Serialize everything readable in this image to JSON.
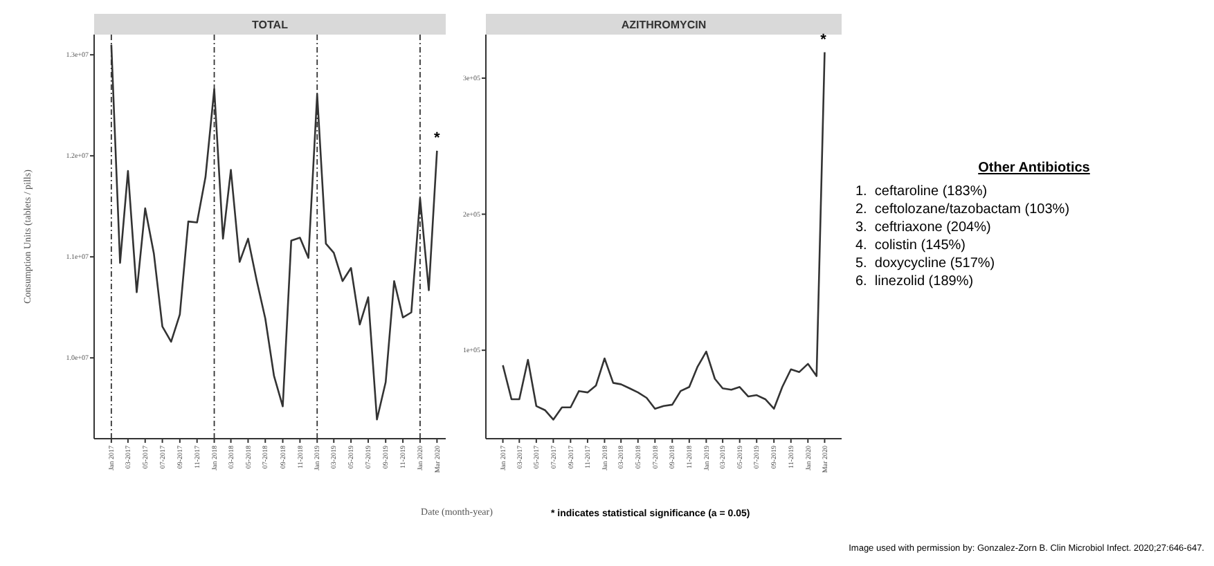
{
  "chart_data": [
    {
      "type": "line",
      "title": "TOTAL",
      "xlabel": "Date (month-year)",
      "ylabel": "Consumption Units (tablets / pills)",
      "x": [
        "2017-01",
        "2017-02",
        "2017-03",
        "2017-04",
        "2017-05",
        "2017-06",
        "2017-07",
        "2017-08",
        "2017-09",
        "2017-10",
        "2017-11",
        "2017-12",
        "2018-01",
        "2018-02",
        "2018-03",
        "2018-04",
        "2018-05",
        "2018-06",
        "2018-07",
        "2018-08",
        "2018-09",
        "2018-10",
        "2018-11",
        "2018-12",
        "2019-01",
        "2019-02",
        "2019-03",
        "2019-04",
        "2019-05",
        "2019-06",
        "2019-07",
        "2019-08",
        "2019-09",
        "2019-10",
        "2019-11",
        "2019-12",
        "2020-01",
        "2020-02",
        "2020-03"
      ],
      "series": [
        {
          "color": "#333333",
          "values": [
            13100000,
            10940000,
            11850000,
            10650000,
            11480000,
            11030000,
            10310000,
            10160000,
            10430000,
            11350000,
            11340000,
            11790000,
            12660000,
            11180000,
            11860000,
            10950000,
            11180000,
            10760000,
            10390000,
            9820000,
            9520000,
            11160000,
            11190000,
            10990000,
            12610000,
            11130000,
            11040000,
            10760000,
            10890000,
            10330000,
            10600000,
            9390000,
            9760000,
            10760000,
            10400000,
            10450000,
            11580000,
            10670000,
            12050000
          ]
        }
      ],
      "xlim": [
        "2016-11",
        "2020-04"
      ],
      "ylim": [
        9200000,
        13200000
      ],
      "yticks": [
        {
          "value": 10000000,
          "label": "1.0e+07"
        },
        {
          "value": 11000000,
          "label": "1.1e+07"
        },
        {
          "value": 12000000,
          "label": "1.2e+07"
        },
        {
          "value": 13000000,
          "label": "1.3e+07"
        }
      ],
      "xticks": [
        {
          "value": "2017-01",
          "label": "Jan 2017"
        },
        {
          "value": "2017-03",
          "label": "03-2017"
        },
        {
          "value": "2017-05",
          "label": "05-2017"
        },
        {
          "value": "2017-07",
          "label": "07-2017"
        },
        {
          "value": "2017-09",
          "label": "09-2017"
        },
        {
          "value": "2017-11",
          "label": "11-2017"
        },
        {
          "value": "2018-01",
          "label": "Jan 2018"
        },
        {
          "value": "2018-03",
          "label": "03-2018"
        },
        {
          "value": "2018-05",
          "label": "05-2018"
        },
        {
          "value": "2018-07",
          "label": "07-2018"
        },
        {
          "value": "2018-09",
          "label": "09-2018"
        },
        {
          "value": "2018-11",
          "label": "11-2018"
        },
        {
          "value": "2019-01",
          "label": "Jan 2019"
        },
        {
          "value": "2019-03",
          "label": "03-2019"
        },
        {
          "value": "2019-05",
          "label": "05-2019"
        },
        {
          "value": "2019-07",
          "label": "07-2019"
        },
        {
          "value": "2019-09",
          "label": "09-2019"
        },
        {
          "value": "2019-11",
          "label": "11-2019"
        },
        {
          "value": "2020-01",
          "label": "Jan 2020"
        },
        {
          "value": "2020-03",
          "label": "Mar 2020"
        }
      ],
      "ref_lines": [
        {
          "axis": "x",
          "value": "2017-01",
          "line_style": "dotted",
          "color": "#333333"
        },
        {
          "axis": "x",
          "value": "2018-01",
          "line_style": "dotted",
          "color": "#333333"
        },
        {
          "axis": "x",
          "value": "2019-01",
          "line_style": "dotted",
          "color": "#333333"
        },
        {
          "axis": "x",
          "value": "2020-01",
          "line_style": "dotted",
          "color": "#333333"
        }
      ],
      "annotations": [
        {
          "text": "*",
          "x": "2020-03",
          "y": 12050000
        }
      ],
      "grid": false,
      "line_style": "solid",
      "marker": "none"
    },
    {
      "type": "line",
      "title": "AZITHROMYCIN",
      "x": [
        "2017-01",
        "2017-02",
        "2017-03",
        "2017-04",
        "2017-05",
        "2017-06",
        "2017-07",
        "2017-08",
        "2017-09",
        "2017-10",
        "2017-11",
        "2017-12",
        "2018-01",
        "2018-02",
        "2018-03",
        "2018-04",
        "2018-05",
        "2018-06",
        "2018-07",
        "2018-08",
        "2018-09",
        "2018-10",
        "2018-11",
        "2018-12",
        "2019-01",
        "2019-02",
        "2019-03",
        "2019-04",
        "2019-05",
        "2019-06",
        "2019-07",
        "2019-08",
        "2019-09",
        "2019-10",
        "2019-11",
        "2019-12",
        "2020-01",
        "2020-02",
        "2020-03"
      ],
      "series": [
        {
          "color": "#333333",
          "values": [
            89000,
            64000,
            64000,
            93000,
            59000,
            56000,
            49000,
            58000,
            58000,
            70000,
            69000,
            74000,
            94000,
            76000,
            75000,
            72000,
            69000,
            65000,
            57000,
            59000,
            60000,
            70000,
            73000,
            88000,
            99000,
            79000,
            72000,
            71000,
            73000,
            66000,
            67000,
            64000,
            57000,
            73000,
            86000,
            84000,
            90000,
            81000,
            319000
          ]
        }
      ],
      "xlim": [
        "2016-11",
        "2020-05"
      ],
      "ylim": [
        35000,
        332000
      ],
      "yticks": [
        {
          "value": 100000,
          "label": "1e+05"
        },
        {
          "value": 200000,
          "label": "2e+05"
        },
        {
          "value": 300000,
          "label": "3e+05"
        }
      ],
      "xticks": [
        {
          "value": "2017-01",
          "label": "Jan 2017"
        },
        {
          "value": "2017-03",
          "label": "03-2017"
        },
        {
          "value": "2017-05",
          "label": "05-2017"
        },
        {
          "value": "2017-07",
          "label": "07-2017"
        },
        {
          "value": "2017-09",
          "label": "09-2017"
        },
        {
          "value": "2017-11",
          "label": "11-2017"
        },
        {
          "value": "2018-01",
          "label": "Jan 2018"
        },
        {
          "value": "2018-03",
          "label": "03-2018"
        },
        {
          "value": "2018-05",
          "label": "05-2018"
        },
        {
          "value": "2018-07",
          "label": "07-2018"
        },
        {
          "value": "2018-09",
          "label": "09-2018"
        },
        {
          "value": "2018-11",
          "label": "11-2018"
        },
        {
          "value": "2019-01",
          "label": "Jan 2019"
        },
        {
          "value": "2019-03",
          "label": "03-2019"
        },
        {
          "value": "2019-05",
          "label": "05-2019"
        },
        {
          "value": "2019-07",
          "label": "07-2019"
        },
        {
          "value": "2019-09",
          "label": "09-2019"
        },
        {
          "value": "2019-11",
          "label": "11-2019"
        },
        {
          "value": "2020-01",
          "label": "Jan 2020"
        },
        {
          "value": "2020-03",
          "label": "Mar 2020"
        }
      ],
      "annotations": [
        {
          "text": "*",
          "x": "2020-03",
          "y": 319000
        },
        "* indicates statistical significance (a = 0.05)",
        "Image used with permission by: Gonzalez-Zorn B. Clin Microbiol Infect. 2020;27:646-647."
      ],
      "grid": false,
      "line_style": "solid",
      "marker": "none"
    },
    {
      "type": "other",
      "title": "Other Antibiotics",
      "annotations": [
        "1.  ceftaroline (183%)",
        "2.  ceftolozane/tazobactam (103%)",
        "3.  ceftriaxone (204%)",
        "4.  colistin (145%)",
        "5.  doxycycline (517%)",
        "6.  linezolid (189%)"
      ]
    }
  ]
}
